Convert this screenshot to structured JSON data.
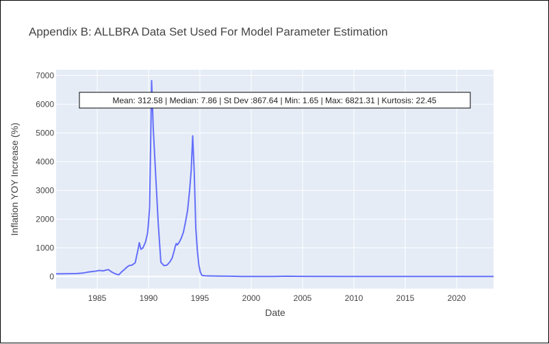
{
  "chart_data": {
    "type": "line",
    "title": "Appendix B: ALLBRA Data Set Used For Model Parameter Estimation",
    "xlabel": "Date",
    "ylabel": "Inflation YOY Increase (%)",
    "xlim": [
      1981.0,
      2023.6
    ],
    "ylim": [
      -420,
      7200
    ],
    "x_ticks": [
      1985,
      1990,
      1995,
      2000,
      2005,
      2010,
      2015,
      2020
    ],
    "y_ticks": [
      0,
      1000,
      2000,
      3000,
      4000,
      5000,
      6000,
      7000
    ],
    "grid": true,
    "legend": "none",
    "series": [
      {
        "color": "#636efa",
        "x": [
          1981.0,
          1982.0,
          1983.0,
          1983.6,
          1984.2,
          1984.7,
          1985.2,
          1985.6,
          1985.9,
          1986.1,
          1986.4,
          1986.8,
          1987.1,
          1987.4,
          1987.7,
          1987.9,
          1988.1,
          1988.4,
          1988.7,
          1988.95,
          1989.1,
          1989.25,
          1989.45,
          1989.7,
          1989.9,
          1990.0,
          1990.1,
          1990.2,
          1990.3,
          1990.45,
          1990.7,
          1990.95,
          1991.2,
          1991.5,
          1991.8,
          1992.1,
          1992.3,
          1992.5,
          1992.6,
          1992.7,
          1992.8,
          1993.0,
          1993.2,
          1993.4,
          1993.6,
          1993.8,
          1994.0,
          1994.15,
          1994.3,
          1994.45,
          1994.6,
          1994.75,
          1994.9,
          1995.05,
          1995.2,
          1995.5,
          1996.0,
          1997.0,
          1998.0,
          1999.0,
          2000.0,
          2001.0,
          2002.0,
          2003.0,
          2003.5,
          2004.0,
          2005.0,
          2010.0,
          2015.0,
          2020.0,
          2023.6
        ],
        "y": [
          95,
          100,
          105,
          120,
          160,
          180,
          210,
          200,
          230,
          240,
          160,
          90,
          60,
          170,
          260,
          330,
          380,
          400,
          480,
          900,
          1180,
          950,
          1000,
          1200,
          1500,
          1900,
          2400,
          4500,
          6821.31,
          5200,
          3500,
          1800,
          500,
          380,
          400,
          520,
          650,
          900,
          1050,
          1150,
          1100,
          1200,
          1350,
          1550,
          1900,
          2300,
          3000,
          3700,
          4900,
          3600,
          1700,
          900,
          400,
          150,
          40,
          25,
          20,
          15,
          10,
          5,
          3,
          3,
          5,
          8,
          10,
          8,
          6,
          4,
          3,
          2,
          2
        ]
      }
    ],
    "annotation": "Mean: 312.58 | Median: 7.86 | St Dev :867.64 | Min: 1.65 | Max: 6821.31 | Kurtosis: 22.45",
    "colors": {
      "plot_bg": "#e5ecf6",
      "grid": "#ffffff",
      "line": "#636efa"
    }
  }
}
